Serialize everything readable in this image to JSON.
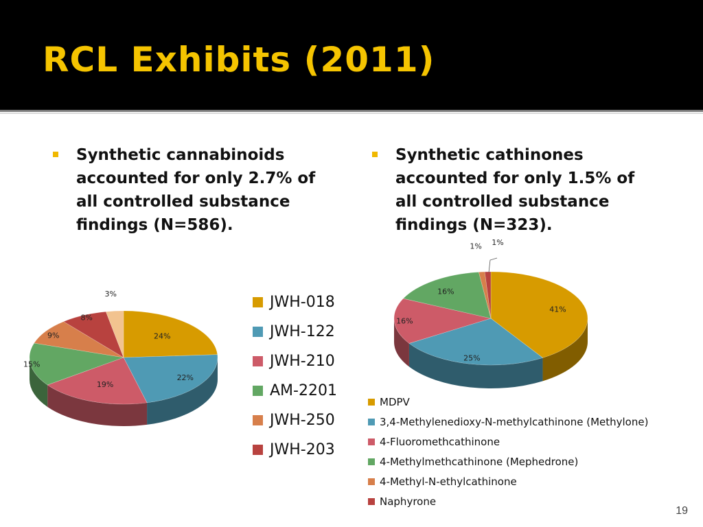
{
  "slide": {
    "title": "RCL Exhibits (2011)",
    "page_number": "19",
    "bullets": [
      "Synthetic cannabinoids accounted for only 2.7% of all controlled substance findings (N=586).",
      "Synthetic cathinones accounted for only 1.5% of all controlled substance findings (N=323)."
    ]
  },
  "colors": {
    "title": "#f5c400",
    "title_background": "#000000",
    "bullet_marker": "#f0b800"
  },
  "chart_data": [
    {
      "type": "pie",
      "title": "",
      "style": "3d",
      "legend": "right",
      "categories": [
        "JWH-018",
        "JWH-122",
        "JWH-210",
        "AM-2201",
        "JWH-250",
        "JWH-203",
        ""
      ],
      "values": [
        24,
        22,
        19,
        15,
        9,
        8,
        3
      ],
      "data_labels": [
        "24%",
        "22%",
        "19%",
        "15%",
        "9%",
        "8%",
        "3%"
      ],
      "colors": [
        "#d79b00",
        "#4f9ab4",
        "#cd5b68",
        "#62a763",
        "#d77f4b",
        "#b8423f",
        "#f2c38f"
      ]
    },
    {
      "type": "pie",
      "title": "",
      "style": "3d",
      "legend": "bottom",
      "categories": [
        "MDPV",
        "3,4-Methylenedioxy-N-methylcathinone (Methylone)",
        "4-Fluoromethcathinone",
        "4-Methylmethcathinone (Mephedrone)",
        "4-Methyl-N-ethylcathinone",
        "Naphyrone"
      ],
      "values": [
        41,
        25,
        16,
        16,
        1,
        1
      ],
      "data_labels": [
        "41%",
        "25%",
        "16%",
        "16%",
        "1%",
        "1%"
      ],
      "colors": [
        "#d79b00",
        "#4f9ab4",
        "#cd5b68",
        "#62a763",
        "#d77f4b",
        "#b8423f"
      ]
    }
  ]
}
